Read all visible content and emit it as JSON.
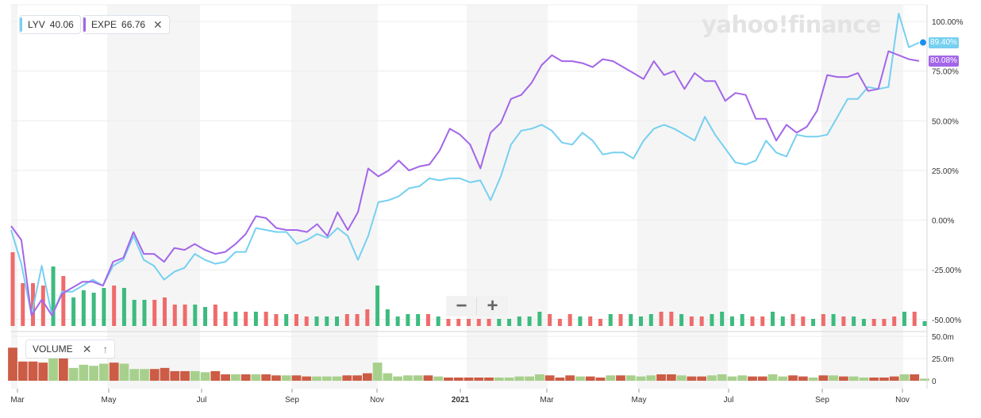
{
  "legend": [
    {
      "symbol": "LYV",
      "value": "40.06",
      "color": "#76d0f0"
    },
    {
      "symbol": "EXPE",
      "value": "66.76",
      "color": "#a366e8"
    }
  ],
  "legend_close": "✕",
  "logo": "yahoo!finance",
  "zoom": {
    "minus": "−",
    "plus": "+"
  },
  "volume_label": "VOLUME",
  "volume_close": "✕",
  "volume_up": "↑",
  "last_values": {
    "lyv": "89.40%",
    "expe": "80.08%"
  },
  "colors": {
    "lyv": "#76d0f0",
    "expe": "#a366e8",
    "vol_up": "#3dbb7f",
    "vol_down": "#ef6b6b",
    "vol2_up": "#a8d08d",
    "vol2_down": "#cc5c45",
    "band": "#f5f5f5"
  },
  "chart_data": {
    "type": "line",
    "x_tick_labels": [
      "Mar",
      "May",
      "Jul",
      "Sep",
      "Nov",
      "2021",
      "Mar",
      "May",
      "Jul",
      "Sep",
      "Nov"
    ],
    "y_tick_labels": [
      "100.00%",
      "75.00%",
      "50.00%",
      "25.00%",
      "0.00%",
      "-25.00%",
      "-50.00%"
    ],
    "ylim": [
      -50,
      100
    ],
    "series": [
      {
        "name": "LYV",
        "values": [
          -5,
          -22,
          -48,
          -23,
          -48,
          -36,
          -36,
          -33,
          -30,
          -33,
          -23,
          -20,
          -8,
          -20,
          -23,
          -30,
          -26,
          -24,
          -17,
          -20,
          -22,
          -21,
          -16,
          -16,
          -4,
          -5,
          -6,
          -6,
          -12,
          -10,
          -7,
          -9,
          -4,
          -8,
          -20,
          -8,
          9,
          10,
          12,
          16,
          17,
          21,
          20,
          21,
          21,
          19,
          20,
          10,
          22,
          38,
          45,
          46,
          48,
          45,
          39,
          38,
          44,
          40,
          33,
          34,
          34,
          31,
          40,
          46,
          48,
          46,
          43,
          40,
          52,
          43,
          36,
          29,
          28,
          30,
          40,
          34,
          32,
          43,
          42,
          42,
          43,
          52,
          61,
          61,
          67,
          66,
          67,
          104,
          87,
          89.4
        ]
      },
      {
        "name": "EXPE",
        "values": [
          -3,
          -10,
          -48,
          -40,
          -48,
          -37,
          -34,
          -31,
          -31,
          -33,
          -21,
          -19,
          -6,
          -17,
          -17,
          -21,
          -14,
          -15,
          -12,
          -15,
          -17,
          -16,
          -12,
          -7,
          2,
          1,
          -4,
          -5,
          -5,
          -6,
          -2,
          -8,
          4,
          -5,
          4,
          26,
          22,
          25,
          30,
          25,
          27,
          28,
          35,
          46,
          43,
          38,
          26,
          44,
          49,
          61,
          63,
          69,
          78,
          83,
          80,
          80,
          79,
          77,
          81,
          80,
          77,
          74,
          71,
          80,
          73,
          75,
          66,
          74,
          70,
          70,
          60,
          64,
          63,
          51,
          51,
          40,
          48,
          44,
          47,
          55,
          73,
          72,
          72,
          74,
          65,
          66,
          85,
          83,
          81,
          80.08
        ]
      }
    ],
    "volume_upper_pane": {
      "values": [
        31,
        18,
        18,
        17,
        25,
        21,
        12,
        15,
        14,
        16,
        17,
        16,
        11,
        11,
        11,
        12,
        9,
        9,
        9,
        8,
        9,
        6,
        6,
        6,
        6,
        6,
        5,
        5,
        5,
        4,
        4,
        4,
        4,
        5,
        5,
        7,
        17,
        7,
        4,
        5,
        5,
        5,
        4,
        3,
        3,
        3,
        3,
        3,
        3,
        3,
        4,
        4,
        6,
        5,
        3,
        5,
        4,
        4,
        3,
        5,
        5,
        5,
        4,
        5,
        6,
        6,
        5,
        4,
        4,
        5,
        6,
        4,
        5,
        4,
        4,
        6,
        4,
        5,
        4,
        3,
        5,
        5,
        4,
        4,
        3,
        3,
        3,
        4,
        6,
        6,
        2
      ],
      "up": [
        false,
        false,
        false,
        false,
        true,
        false,
        true,
        true,
        true,
        true,
        false,
        true,
        true,
        true,
        false,
        false,
        false,
        false,
        true,
        true,
        false,
        false,
        true,
        false,
        true,
        false,
        false,
        true,
        false,
        false,
        true,
        true,
        true,
        false,
        false,
        false,
        true,
        true,
        true,
        true,
        true,
        false,
        true,
        false,
        false,
        false,
        false,
        false,
        true,
        true,
        true,
        true,
        true,
        false,
        false,
        false,
        true,
        false,
        false,
        true,
        false,
        true,
        true,
        true,
        false,
        false,
        true,
        false,
        false,
        true,
        true,
        true,
        true,
        false,
        false,
        true,
        true,
        false,
        false,
        true,
        false,
        true,
        false,
        true,
        true,
        false,
        false,
        false,
        true,
        false,
        true
      ]
    },
    "volume_lower_pane": {
      "y_tick_labels": [
        "50.0m",
        "25.0m",
        "0"
      ],
      "ylim": [
        0,
        50
      ]
    }
  }
}
